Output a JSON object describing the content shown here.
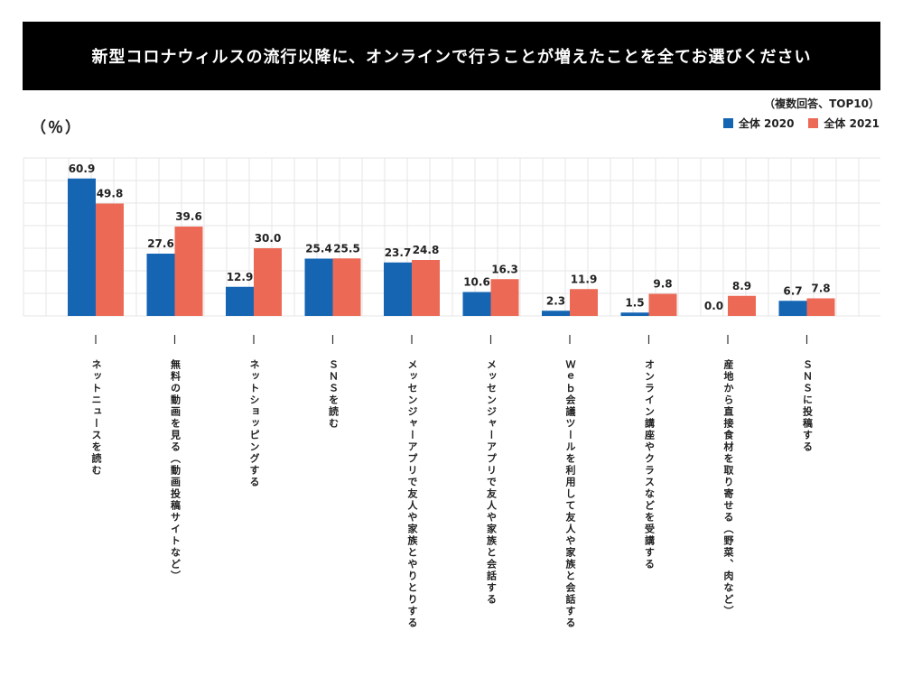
{
  "title": "新型コロナウィルスの流行以降に、オンラインで行うことが増えたことを全てお選びください",
  "note": "（複数回答、TOP10）",
  "unit": "（％）",
  "chart_data": {
    "type": "bar",
    "categories": [
      "ネットニュースを読む",
      "無料の動画を見る（動画投稿サイトなど）",
      "ネットショッピングする",
      "ＳＮＳを読む",
      "メッセンジャーアプリで友人や家族とやりとりする",
      "メッセンジャーアプリで友人や家族と会話する",
      "Ｗｅｂ会議ツールを利用して友人や家族と会話する",
      "オンライン講座やクラスなどを受講する",
      "産地から直接食材を取り寄せる（野菜、肉など）",
      "ＳＮＳに投稿する"
    ],
    "series": [
      {
        "name": "全体 2020",
        "color": "#1565b3",
        "values": [
          60.9,
          27.6,
          12.9,
          25.4,
          23.7,
          10.6,
          2.3,
          1.5,
          0.0,
          6.7
        ],
        "labels": [
          "60.9",
          "27.6",
          "12.9",
          "25.4",
          "23.7",
          "10.6",
          "2.3",
          "1.5",
          "0.0",
          "6.7"
        ]
      },
      {
        "name": "全体 2021",
        "color": "#ec6a55",
        "values": [
          49.8,
          39.6,
          30.0,
          25.5,
          24.8,
          16.3,
          11.9,
          9.8,
          8.9,
          7.8
        ],
        "labels": [
          "49.8",
          "39.6",
          "30.0",
          "25.5",
          "24.8",
          "16.3",
          "11.9",
          "9.8",
          "8.9",
          "7.8"
        ]
      }
    ],
    "ylim": [
      0,
      70
    ],
    "grid": true,
    "legend_position": "top-right"
  }
}
